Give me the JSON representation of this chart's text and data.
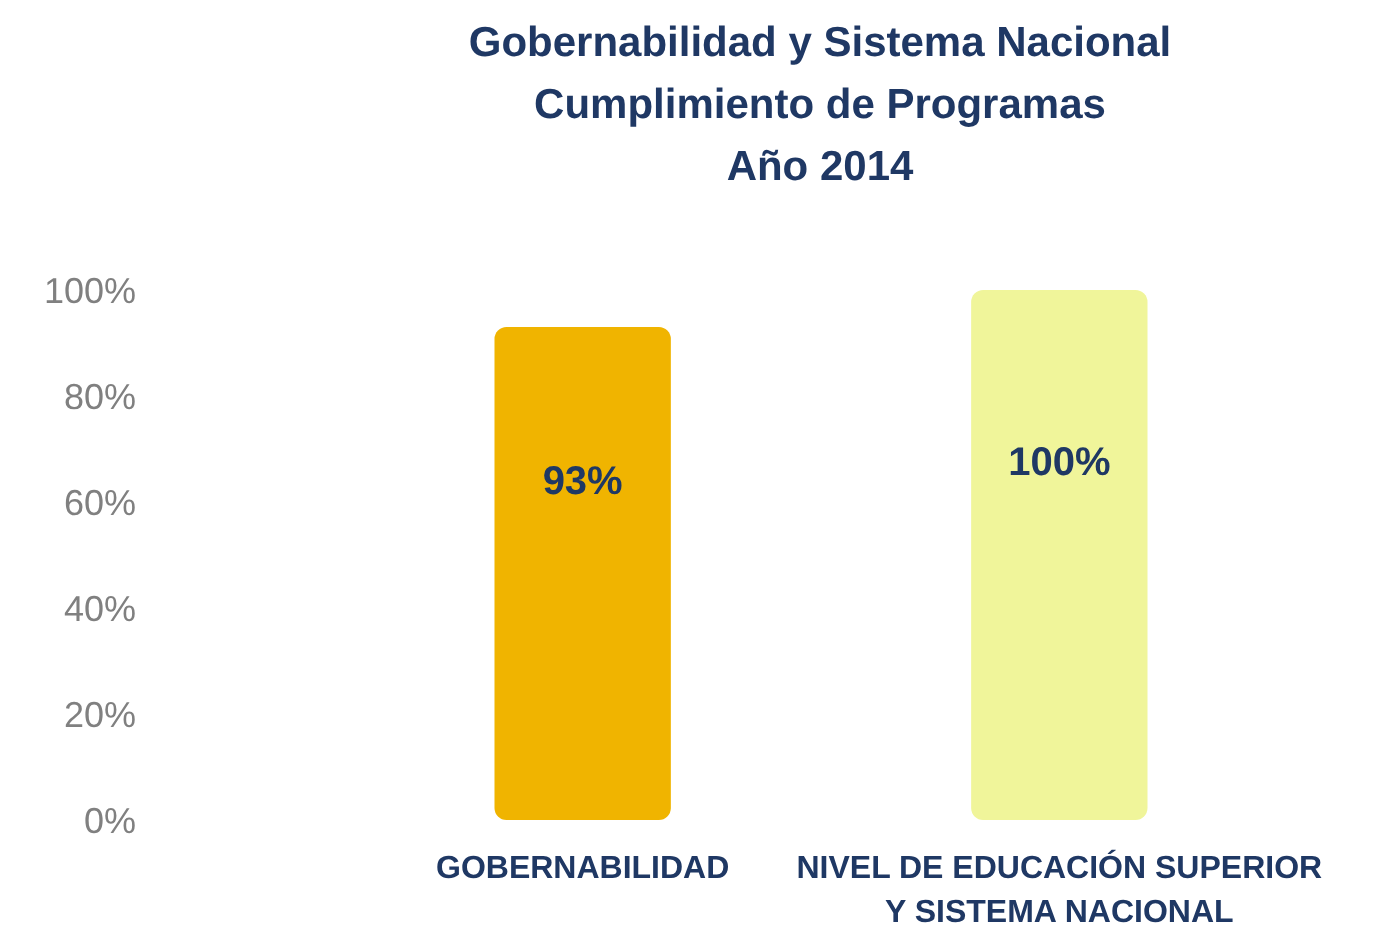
{
  "chart_data": {
    "type": "bar",
    "title": "Gobernabilidad y Sistema Nacional\nCumplimiento de Programas\nAño 2014",
    "categories": [
      "GOBERNABILIDAD",
      "NIVEL DE EDUCACIÓN SUPERIOR\nY SISTEMA NACIONAL"
    ],
    "values": [
      93,
      100
    ],
    "colors": [
      "#f0b400",
      "#f0f59a"
    ],
    "value_labels": [
      "93%",
      "100%"
    ],
    "ylim": [
      0,
      100
    ],
    "yticks": [
      {
        "value": 0,
        "label": "0%"
      },
      {
        "value": 20,
        "label": "20%"
      },
      {
        "value": 40,
        "label": "40%"
      },
      {
        "value": 60,
        "label": "60%"
      },
      {
        "value": 80,
        "label": "80%"
      },
      {
        "value": 100,
        "label": "100%"
      }
    ],
    "grid": false
  }
}
